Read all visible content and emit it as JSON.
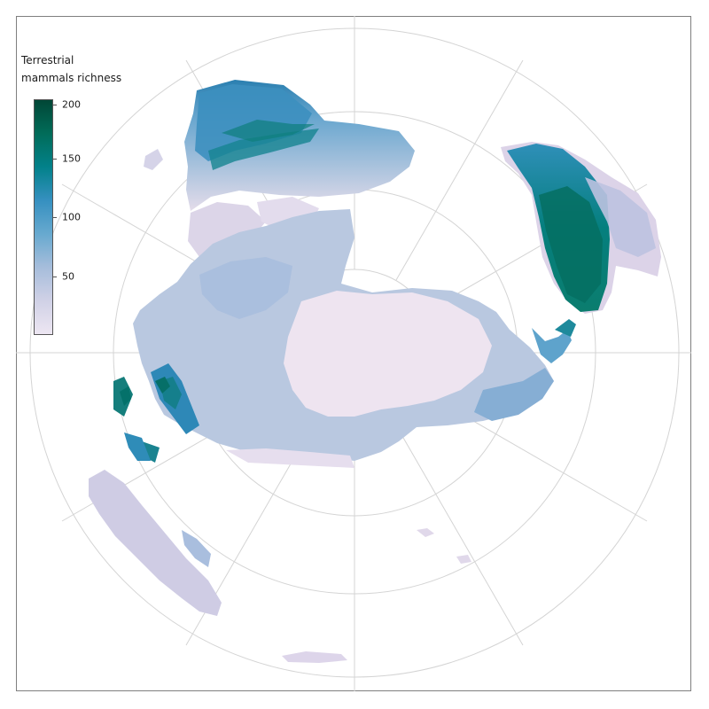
{
  "legend": {
    "title_line1": "Terrestrial",
    "title_line2": "mammals richness",
    "ticks": [
      {
        "value": 200,
        "label": "200"
      },
      {
        "value": 150,
        "label": "150"
      },
      {
        "value": 100,
        "label": "100"
      },
      {
        "value": 50,
        "label": "50"
      }
    ],
    "range": [
      0,
      200
    ],
    "colors": [
      "#ede6f2",
      "#d0d1e6",
      "#a6bddb",
      "#67a9cf",
      "#3690c0",
      "#02818a",
      "#016c59",
      "#014636"
    ]
  },
  "map": {
    "projection": "polar (south pole centered)",
    "graticule_color": "#cccccc",
    "land_base_color": "#ece3ef"
  }
}
